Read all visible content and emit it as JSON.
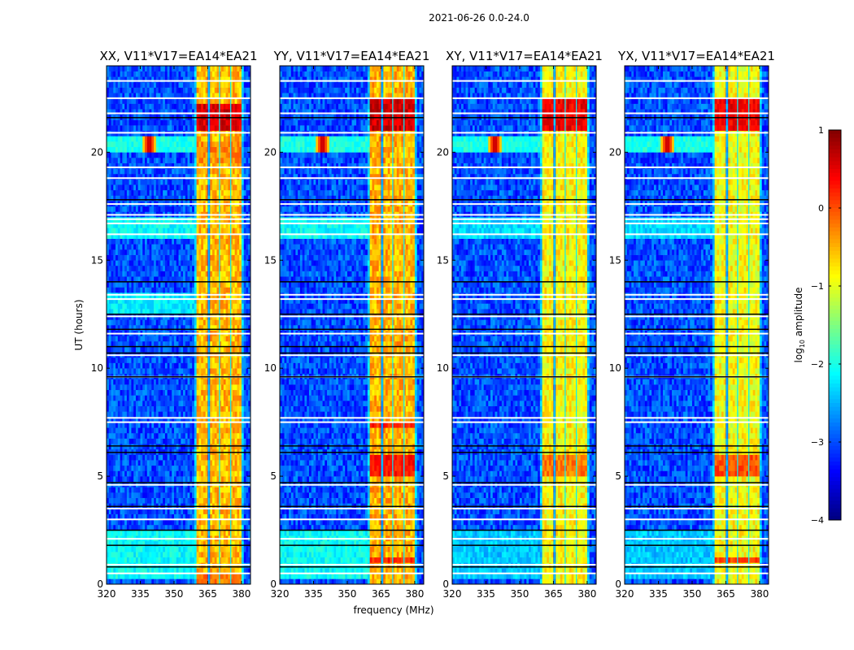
{
  "chart_data": {
    "type": "heatmap",
    "suptitle": "2021-06-26 0.0-24.0",
    "xlabel": "frequency (MHz)",
    "ylabel": "UT (hours)",
    "xlim": [
      320,
      384
    ],
    "ylim": [
      0,
      24
    ],
    "xticks": [
      320,
      335,
      350,
      365,
      380
    ],
    "yticks": [
      0,
      5,
      10,
      15,
      20
    ],
    "colorbar": {
      "label_main": "log",
      "label_sub": "10",
      "label_rest": " amplitude",
      "range": [
        -4,
        1
      ],
      "ticks": [
        1,
        0,
        -1,
        -2,
        -3,
        -4
      ],
      "tick_labels": [
        "1",
        "0",
        "−1",
        "−2",
        "−3",
        "−4"
      ],
      "colormap": "jet"
    },
    "background_level": -3.0,
    "subbands_mhz": [
      [
        360.5,
        365.3
      ],
      [
        365.7,
        370.0
      ],
      [
        370.4,
        375.0
      ],
      [
        375.4,
        380.2
      ]
    ],
    "flagged_hours_white": [
      23.3,
      22.5,
      21.8,
      20.9,
      19.3,
      18.8,
      17.6,
      17.1,
      16.9,
      16.7,
      16.2,
      13.4,
      13.2,
      12.4,
      11.6,
      10.6,
      9.6,
      7.7,
      7.5,
      4.6,
      3.5,
      3.0,
      2.1,
      0.9,
      0.5
    ],
    "flagged_hours_black": [
      21.6,
      17.8,
      14.0,
      12.5,
      11.8,
      11.0,
      10.7,
      9.6,
      6.4,
      6.1,
      4.7,
      3.6,
      2.5,
      1.8,
      0.8
    ],
    "rfi_source": {
      "freq_mhz": 339,
      "hour": 20.4,
      "level": 0.9
    },
    "panels": [
      {
        "title": "XX, V11*V17=EA14*EA21",
        "band_level": -0.55,
        "hot_hours": [
          [
            21.0,
            22.3,
            0.55
          ],
          [
            19.5,
            20.5,
            -0.3
          ],
          [
            0.0,
            0.6,
            -0.2
          ]
        ],
        "low_band_cyan": [
          [
            0.3,
            2.4,
            -2.1
          ],
          [
            12.6,
            13.6,
            -2.2
          ],
          [
            16.0,
            16.9,
            -2.1
          ]
        ]
      },
      {
        "title": "YY, V11*V17=EA14*EA21",
        "band_level": -0.5,
        "hot_hours": [
          [
            21.0,
            22.4,
            0.6
          ],
          [
            5.0,
            5.9,
            0.3
          ],
          [
            0.9,
            1.3,
            0.2
          ],
          [
            7.2,
            7.6,
            0.2
          ]
        ],
        "low_band_cyan": [
          [
            0.3,
            2.4,
            -2.1
          ],
          [
            16.0,
            16.9,
            -2.1
          ]
        ]
      },
      {
        "title": "XY, V11*V17=EA14*EA21",
        "band_level": -0.85,
        "hot_hours": [
          [
            21.0,
            22.4,
            0.45
          ],
          [
            5.0,
            5.9,
            -0.2
          ]
        ],
        "low_band_cyan": [
          [
            0.3,
            2.4,
            -2.4
          ],
          [
            16.0,
            16.9,
            -2.3
          ]
        ]
      },
      {
        "title": "YX, V11*V17=EA14*EA21",
        "band_level": -0.9,
        "hot_hours": [
          [
            21.0,
            22.4,
            0.45
          ],
          [
            5.0,
            5.9,
            0.0
          ],
          [
            0.9,
            1.3,
            0.1
          ]
        ],
        "low_band_cyan": [
          [
            0.3,
            2.4,
            -2.4
          ],
          [
            16.0,
            16.9,
            -2.3
          ]
        ]
      }
    ]
  }
}
